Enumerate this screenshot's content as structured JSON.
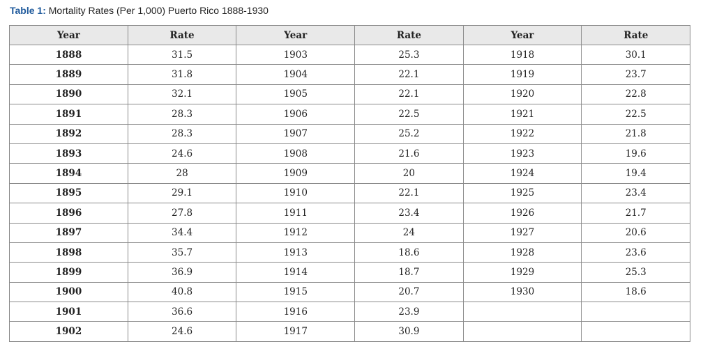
{
  "caption": {
    "label": "Table 1:",
    "text": " Mortality Rates (Per 1,000) Puerto Rico 1888-1930"
  },
  "headers": [
    "Year",
    "Rate",
    "Year",
    "Rate",
    "Year",
    "Rate"
  ],
  "rows": [
    [
      "1888",
      "31.5",
      "1903",
      "25.3",
      "1918",
      "30.1"
    ],
    [
      "1889",
      "31.8",
      "1904",
      "22.1",
      "1919",
      "23.7"
    ],
    [
      "1890",
      "32.1",
      "1905",
      "22.1",
      "1920",
      "22.8"
    ],
    [
      "1891",
      "28.3",
      "1906",
      "22.5",
      "1921",
      "22.5"
    ],
    [
      "1892",
      "28.3",
      "1907",
      "25.2",
      "1922",
      "21.8"
    ],
    [
      "1893",
      "24.6",
      "1908",
      "21.6",
      "1923",
      "19.6"
    ],
    [
      "1894",
      "28",
      "1909",
      "20",
      "1924",
      "19.4"
    ],
    [
      "1895",
      "29.1",
      "1910",
      "22.1",
      "1925",
      "23.4"
    ],
    [
      "1896",
      "27.8",
      "1911",
      "23.4",
      "1926",
      "21.7"
    ],
    [
      "1897",
      "34.4",
      "1912",
      "24",
      "1927",
      "20.6"
    ],
    [
      "1898",
      "35.7",
      "1913",
      "18.6",
      "1928",
      "23.6"
    ],
    [
      "1899",
      "36.9",
      "1914",
      "18.7",
      "1929",
      "25.3"
    ],
    [
      "1900",
      "40.8",
      "1915",
      "20.7",
      "1930",
      "18.6"
    ],
    [
      "1901",
      "36.6",
      "1916",
      "23.9",
      "",
      ""
    ],
    [
      "1902",
      "24.6",
      "1917",
      "30.9",
      "",
      ""
    ]
  ],
  "colors": {
    "caption_label": "#1f5a9c",
    "header_bg": "#e9e9e9",
    "border": "#8a8a8a"
  }
}
